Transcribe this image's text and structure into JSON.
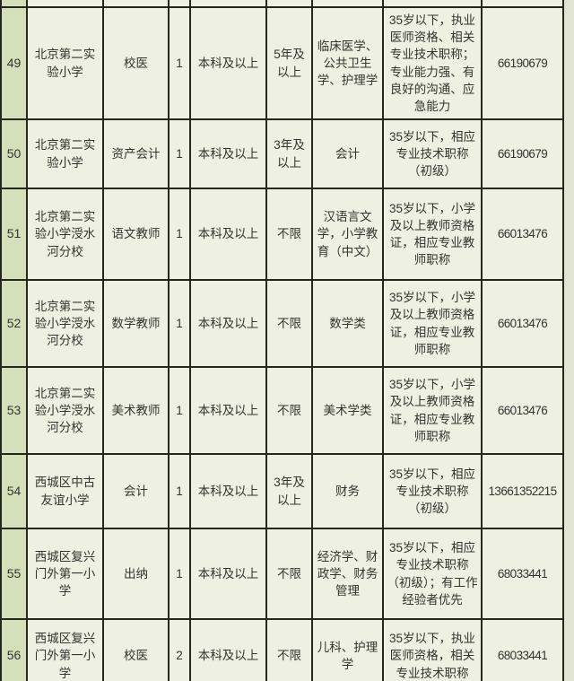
{
  "colors": {
    "num_column_bg": "#d4e0b9",
    "cell_bg": "#eef0e1",
    "border": "#26261d",
    "text": "#333331",
    "outside_bg": "#e1e3d3"
  },
  "table": {
    "rows": [
      {
        "num": "49",
        "school": "北京第二实验小学",
        "position": "校医",
        "count": "1",
        "education": "本科及以上",
        "experience": "5年及以上",
        "major": "临床医学、公共卫生学、护理学",
        "requirements": "35岁以下，执业医师资格、相关专业技术职称；专业能力强、有良好的沟通、应急能力",
        "phone": "66190679"
      },
      {
        "num": "50",
        "school": "北京第二实验小学",
        "position": "资产会计",
        "count": "1",
        "education": "本科及以上",
        "experience": "3年及以上",
        "major": "会计",
        "requirements": "35岁以下，相应专业技术职称（初级）",
        "phone": "66190679"
      },
      {
        "num": "51",
        "school": "北京第二实验小学涭水河分校",
        "position": "语文教师",
        "count": "1",
        "education": "本科及以上",
        "experience": "不限",
        "major": "汉语言文学，小学教育（中文）",
        "requirements": "35岁以下，小学及以上教师资格证，相应专业教师职称",
        "phone": "66013476"
      },
      {
        "num": "52",
        "school": "北京第二实验小学涭水河分校",
        "position": "数学教师",
        "count": "1",
        "education": "本科及以上",
        "experience": "不限",
        "major": "数学类",
        "requirements": "35岁以下，小学及以上教师资格证，相应专业教师职称",
        "phone": "66013476"
      },
      {
        "num": "53",
        "school": "北京第二实验小学涭水河分校",
        "position": "美术教师",
        "count": "1",
        "education": "本科及以上",
        "experience": "不限",
        "major": "美术学类",
        "requirements": "35岁以下，小学及以上教师资格证，相应专业教师职称",
        "phone": "66013476"
      },
      {
        "num": "54",
        "school": "西城区中古友谊小学",
        "position": "会计",
        "count": "1",
        "education": "本科及以上",
        "experience": "3年及以上",
        "major": "财务",
        "requirements": "35岁以下，相应专业技术职称（初级）",
        "phone": "13661352215"
      },
      {
        "num": "55",
        "school": "西城区复兴门外第一小学",
        "position": "出纳",
        "count": "1",
        "education": "本科及以上",
        "experience": "不限",
        "major": "经济学、财政学、财务管理",
        "requirements": "35岁以下，相应专业技术职称（初级）；有工作经验者优先",
        "phone": "68033441"
      },
      {
        "num": "56",
        "school": "西城区复兴门外第一小学",
        "position": "校医",
        "count": "2",
        "education": "本科及以上",
        "experience": "不限",
        "major": "儿科、护理学",
        "requirements": "35岁以下，执业医师资格，相关专业技术职称",
        "phone": "68033441"
      }
    ]
  }
}
